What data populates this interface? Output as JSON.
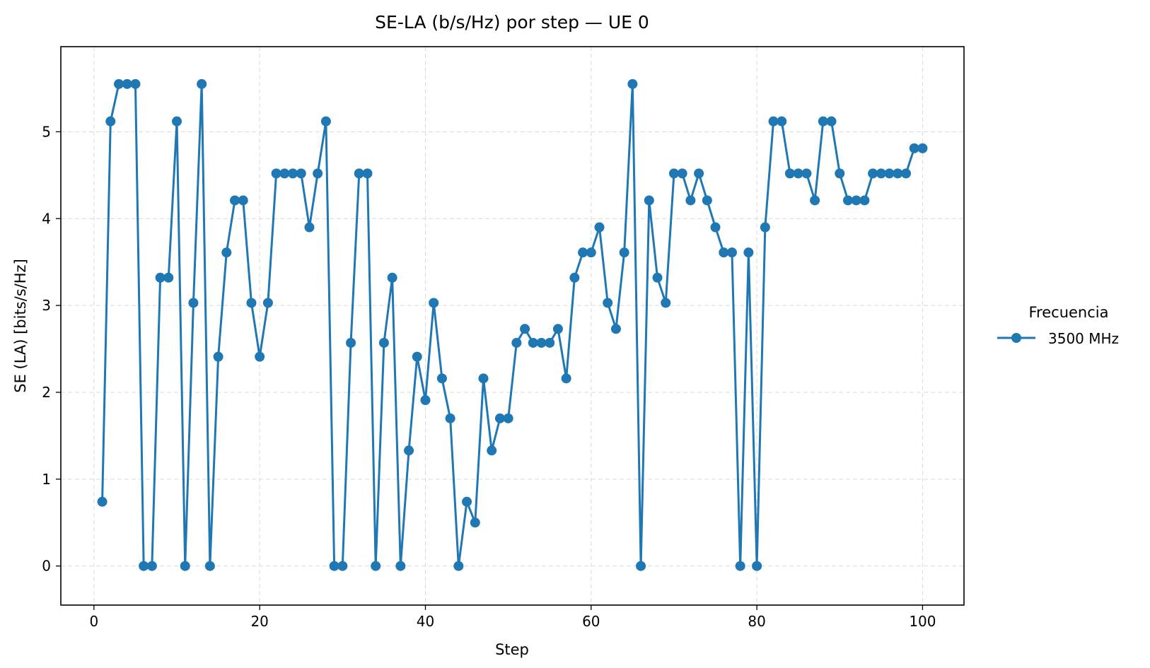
{
  "chart_data": {
    "type": "line",
    "title": "SE-LA (b/s/Hz) por step — UE 0",
    "xlabel": "Step",
    "ylabel": "SE (LA) [bits/s/Hz]",
    "xlim": [
      -4,
      105
    ],
    "ylim": [
      -0.45,
      5.98
    ],
    "xticks": [
      0,
      20,
      40,
      60,
      80,
      100
    ],
    "yticks": [
      0,
      1,
      2,
      3,
      4,
      5
    ],
    "grid": true,
    "legend": {
      "title": "Frecuencia",
      "placement": "outside-right"
    },
    "series": [
      {
        "name": "3500 MHz",
        "color": "#1f77b4",
        "marker": "circle",
        "x": [
          1,
          2,
          3,
          4,
          5,
          6,
          7,
          8,
          9,
          10,
          11,
          12,
          13,
          14,
          15,
          16,
          17,
          18,
          19,
          20,
          21,
          22,
          23,
          24,
          25,
          26,
          27,
          28,
          29,
          30,
          31,
          32,
          33,
          34,
          35,
          36,
          37,
          38,
          39,
          40,
          41,
          42,
          43,
          44,
          45,
          46,
          47,
          48,
          49,
          50,
          51,
          52,
          53,
          54,
          55,
          56,
          57,
          58,
          59,
          60,
          61,
          62,
          63,
          64,
          65,
          66,
          67,
          68,
          69,
          70,
          71,
          72,
          73,
          74,
          75,
          76,
          77,
          78,
          79,
          80,
          81,
          82,
          83,
          84,
          85,
          86,
          87,
          88,
          89,
          90,
          91,
          92,
          93,
          94,
          95,
          96,
          97,
          98,
          99,
          100
        ],
        "y": [
          0.74,
          5.12,
          5.55,
          5.55,
          5.55,
          0,
          0,
          3.32,
          3.32,
          5.12,
          0,
          3.03,
          5.55,
          0,
          2.41,
          3.61,
          4.21,
          4.21,
          3.03,
          2.41,
          3.03,
          4.52,
          4.52,
          4.52,
          4.52,
          3.9,
          4.52,
          5.12,
          0,
          0,
          2.57,
          4.52,
          4.52,
          0,
          2.57,
          3.32,
          0,
          1.33,
          2.41,
          1.91,
          3.03,
          2.16,
          1.7,
          0,
          0.74,
          0.5,
          2.16,
          1.33,
          1.7,
          1.7,
          2.57,
          2.73,
          2.57,
          2.57,
          2.57,
          2.73,
          2.16,
          3.32,
          3.61,
          3.61,
          3.9,
          3.03,
          2.73,
          3.61,
          5.55,
          0,
          4.21,
          3.32,
          3.03,
          4.52,
          4.52,
          4.21,
          4.52,
          4.21,
          3.9,
          3.61,
          3.61,
          0,
          3.61,
          0,
          3.9,
          5.12,
          5.12,
          4.52,
          4.52,
          4.52,
          4.21,
          5.12,
          5.12,
          4.52,
          4.21,
          4.21,
          4.21,
          4.52,
          4.52,
          4.52,
          4.52,
          4.52,
          4.81,
          4.81
        ]
      }
    ]
  }
}
